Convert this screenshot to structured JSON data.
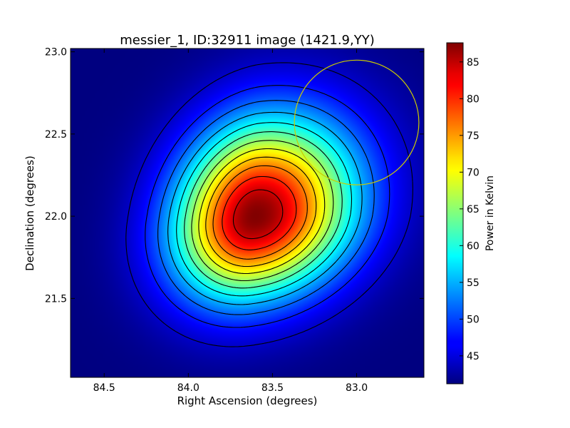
{
  "chart_data": {
    "type": "heatmap",
    "title": "messier_1, ID:32911 image (1421.9,YY)",
    "xlabel": "Right Ascension (degrees)",
    "ylabel": "Declination (degrees)",
    "xlim": [
      84.7,
      82.6
    ],
    "ylim": [
      21.02,
      23.02
    ],
    "x_ticks": [
      {
        "value": 84.5,
        "label": "84.5"
      },
      {
        "value": 84.0,
        "label": "84.0"
      },
      {
        "value": 83.5,
        "label": "83.5"
      },
      {
        "value": 83.0,
        "label": "83.0"
      }
    ],
    "y_ticks": [
      {
        "value": 21.5,
        "label": "21.5"
      },
      {
        "value": 22.0,
        "label": "22.0"
      },
      {
        "value": 22.5,
        "label": "22.5"
      },
      {
        "value": 23.0,
        "label": "23.0"
      }
    ],
    "colormap": "jet",
    "colorbar": {
      "label": "Power in Kelvin",
      "range": [
        41.2,
        87.6
      ],
      "ticks": [
        {
          "value": 45,
          "label": "45"
        },
        {
          "value": 50,
          "label": "50"
        },
        {
          "value": 55,
          "label": "55"
        },
        {
          "value": 60,
          "label": "60"
        },
        {
          "value": 65,
          "label": "65"
        },
        {
          "value": 70,
          "label": "70"
        },
        {
          "value": 75,
          "label": "75"
        },
        {
          "value": 80,
          "label": "80"
        },
        {
          "value": 85,
          "label": "85"
        }
      ]
    },
    "source": {
      "center_ra": 83.6,
      "center_dec": 22.0,
      "peak_kelvin": 87.5,
      "background_kelvin": 41.2
    },
    "contour_levels_kelvin": [
      44.5,
      48.0,
      51.5,
      55.0,
      58.5,
      62.0,
      65.5,
      69.0,
      72.5,
      76.0,
      80.0,
      84.0
    ],
    "beam_circle": {
      "center_ra": 83.0,
      "center_dec": 22.57,
      "radius_deg": 0.37,
      "color": "#cccc00"
    },
    "contour_color": "#000000",
    "grid": false
  }
}
